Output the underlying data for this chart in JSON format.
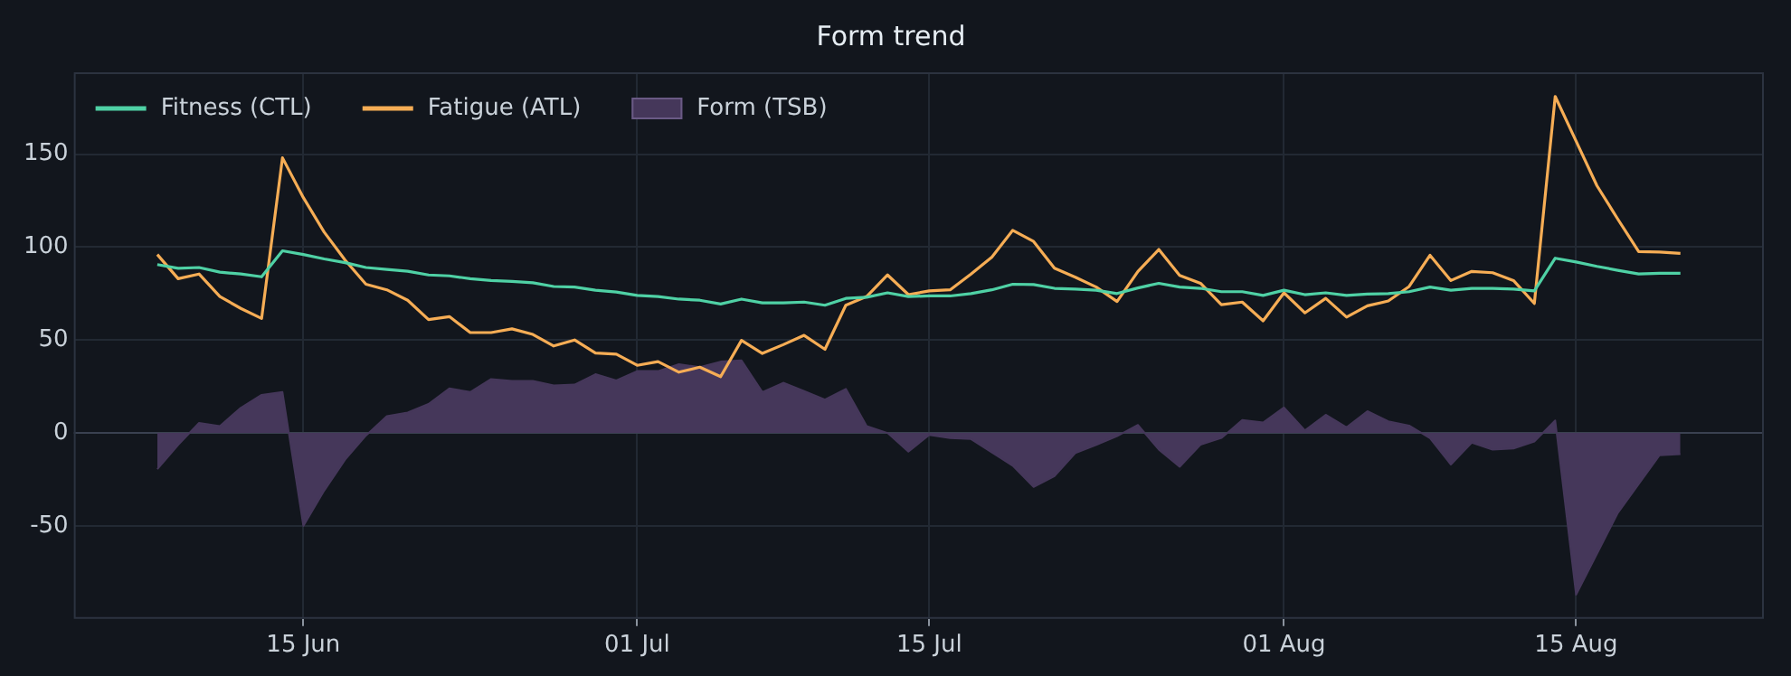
{
  "chart_data": {
    "type": "line",
    "title": "Form trend",
    "x": [
      "--06-08",
      "--06-09",
      "--06-10",
      "--06-11",
      "--06-12",
      "--06-13",
      "--06-14",
      "--06-15",
      "--06-16",
      "--06-17",
      "--06-18",
      "--06-19",
      "--06-20",
      "--06-21",
      "--06-22",
      "--06-23",
      "--06-24",
      "--06-25",
      "--06-26",
      "--06-27",
      "--06-28",
      "--06-29",
      "--06-30",
      "--07-01",
      "--07-02",
      "--07-03",
      "--07-04",
      "--07-05",
      "--07-06",
      "--07-07",
      "--07-08",
      "--07-09",
      "--07-10",
      "--07-11",
      "--07-12",
      "--07-13",
      "--07-14",
      "--07-15",
      "--07-16",
      "--07-17",
      "--07-18",
      "--07-19",
      "--07-20",
      "--07-21",
      "--07-22",
      "--07-23",
      "--07-24",
      "--07-25",
      "--07-26",
      "--07-27",
      "--07-28",
      "--07-29",
      "--07-30",
      "--07-31",
      "--08-01",
      "--08-02",
      "--08-03",
      "--08-04",
      "--08-05",
      "--08-06",
      "--08-07",
      "--08-08",
      "--08-09",
      "--08-10",
      "--08-11",
      "--08-12",
      "--08-13",
      "--08-14",
      "--08-15",
      "--08-16",
      "--08-17",
      "--08-18",
      "--08-19",
      "--08-20"
    ],
    "series": [
      {
        "name": "Fitness (CTL)",
        "color": "#4fd1a5",
        "values": [
          90.6,
          88.6,
          89,
          86.5,
          85.5,
          84,
          98,
          96,
          93.6,
          91.6,
          89,
          88,
          87,
          85,
          84.5,
          83,
          82,
          81.5,
          80.8,
          78.8,
          78.5,
          76.8,
          75.8,
          74,
          73.4,
          72,
          71.4,
          69.4,
          72,
          70,
          70,
          70.4,
          68.7,
          72.4,
          73,
          75.4,
          73.4,
          73.7,
          73.7,
          75,
          77,
          80,
          79.8,
          77.8,
          77.4,
          76.8,
          75,
          78,
          80.5,
          78.5,
          77.8,
          76,
          76,
          74,
          76.8,
          74.4,
          75.4,
          74,
          74.7,
          75,
          76,
          78.5,
          76.8,
          77.8,
          77.8,
          77.4,
          76.4,
          94,
          92,
          89.6,
          87.5,
          85.5,
          85.9,
          85.9
        ]
      },
      {
        "name": "Fatigue (ATL)",
        "color": "#f6ad55",
        "values": [
          96,
          83,
          85.5,
          73.4,
          67,
          61.6,
          148,
          126.6,
          108,
          93,
          80,
          77,
          71.4,
          61,
          62.6,
          54,
          54,
          56,
          53,
          46.8,
          50,
          43,
          42.4,
          36.4,
          38.4,
          32.7,
          35.4,
          30.3,
          49.8,
          42.8,
          47.5,
          52.5,
          45,
          68.7,
          73.4,
          85,
          74.4,
          76.4,
          77,
          85.5,
          94.6,
          109,
          103,
          88.6,
          83.8,
          78.5,
          70.7,
          86.9,
          98.7,
          84.8,
          80.5,
          69,
          70.4,
          60.3,
          75.4,
          64.6,
          72.4,
          62.3,
          68.4,
          71,
          78.8,
          95.6,
          82,
          86.9,
          86.2,
          82,
          69.7,
          181,
          157,
          133,
          115,
          97.6,
          97.3,
          96.6
        ]
      },
      {
        "name": "Form (TSB)",
        "type": "area",
        "color": "#45375a",
        "values": [
          -19.5,
          -6.4,
          5.4,
          3.7,
          13.5,
          20.5,
          22,
          -50,
          -31,
          -14.4,
          -1.4,
          9,
          11,
          15.6,
          24,
          22,
          29,
          28,
          28,
          25.6,
          26,
          31.6,
          28.3,
          33.3,
          33.3,
          37,
          35.4,
          38.4,
          39,
          22,
          27,
          22.5,
          18,
          23.7,
          3.7,
          0,
          -10,
          -1,
          -2.7,
          -3.3,
          -10.5,
          -17.6,
          -29,
          -23.2,
          -10.8,
          -6.4,
          -1.7,
          4.3,
          -8.9,
          -18.2,
          -6.3,
          -2.7,
          7,
          5.6,
          13.7,
          1.4,
          9.8,
          3,
          11.7,
          6.3,
          4,
          -2.8,
          -17,
          -5.2,
          -9,
          -8.4,
          -4.6,
          6.7,
          -87,
          -65,
          -43,
          -27.5,
          -12,
          -11.4
        ]
      }
    ],
    "xlim": [
      "--06-04",
      "--08-24"
    ],
    "xticks": [
      {
        "value": "--06-15",
        "label": "15 Jun"
      },
      {
        "value": "--07-01",
        "label": "01 Jul"
      },
      {
        "value": "--07-15",
        "label": "15 Jul"
      },
      {
        "value": "--08-01",
        "label": "01 Aug"
      },
      {
        "value": "--08-15",
        "label": "15 Aug"
      }
    ],
    "ylim": [
      -100,
      194
    ],
    "yticks": [
      -50,
      0,
      50,
      100,
      150
    ],
    "ref_lines": [
      {
        "axis": "y",
        "value": 0,
        "color": "#3a4150"
      }
    ],
    "grid": true,
    "legend": "top left",
    "marker": "none"
  }
}
